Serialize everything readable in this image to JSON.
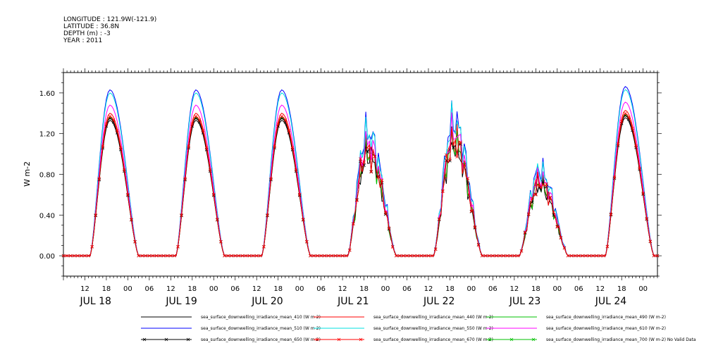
{
  "header": {
    "longitude": "LONGITUDE : 121.9W(-121.9)",
    "latitude": "LATITUDE : 36.8N",
    "depth": "DEPTH (m) : -3",
    "year": "YEAR : 2011"
  },
  "chart_data": {
    "type": "line",
    "ylabel": "W m-2",
    "ylim": [
      -0.2,
      1.8
    ],
    "yticks": [
      0.0,
      0.4,
      0.8,
      1.2,
      1.6
    ],
    "ytick_labels": [
      "0.00",
      "0.40",
      "0.80",
      "1.20",
      "1.60"
    ],
    "x_start_hour": 6,
    "x_end_hour": 172,
    "xtick_hours": [
      12,
      18,
      24,
      30,
      36,
      42,
      48,
      54,
      60,
      66,
      72,
      78,
      84,
      90,
      96,
      102,
      108,
      114,
      120,
      126,
      132,
      138,
      144,
      150,
      156,
      162,
      168
    ],
    "xtick_labels": [
      "12",
      "18",
      "00",
      "06",
      "12",
      "18",
      "00",
      "06",
      "12",
      "18",
      "00",
      "06",
      "12",
      "18",
      "00",
      "06",
      "12",
      "18",
      "00",
      "06",
      "12",
      "18",
      "00",
      "06",
      "12",
      "18",
      "00"
    ],
    "day_labels": [
      {
        "hour": 15,
        "label": "JUL 18"
      },
      {
        "hour": 39,
        "label": "JUL 19"
      },
      {
        "hour": 63,
        "label": "JUL 20"
      },
      {
        "hour": 87,
        "label": "JUL 21"
      },
      {
        "hour": 111,
        "label": "JUL 22"
      },
      {
        "hour": 135,
        "label": "JUL 23"
      },
      {
        "hour": 159,
        "label": "JUL 24"
      }
    ],
    "daily_profile": {
      "day_start_hours": [
        0,
        24,
        48,
        72,
        96,
        120,
        144
      ],
      "peak_factors": [
        1.0,
        1.0,
        1.0,
        0.75,
        0.82,
        0.52,
        1.02
      ],
      "sunrise_hour": 13.5,
      "sunset_hour": 27.0,
      "peak_hour": 19.0,
      "description_note": ""
    },
    "series": [
      {
        "name": "sea_surface_downwelling_irradiance_mean_410 (W m-2)",
        "color": "#000000",
        "marker": "",
        "peak": 1.33
      },
      {
        "name": "sea_surface_downwelling_irradiance_mean_440 (W m-2)",
        "color": "#ff0000",
        "marker": "",
        "peak": 1.4
      },
      {
        "name": "sea_surface_downwelling_irradiance_mean_490 (W m-2)",
        "color": "#00c000",
        "marker": "",
        "peak": 1.36
      },
      {
        "name": "sea_surface_downwelling_irradiance_mean_510 (W m-2)",
        "color": "#0000ff",
        "marker": "",
        "peak": 1.63
      },
      {
        "name": "sea_surface_downwelling_irradiance_mean_550 (W m-2)",
        "color": "#00e0e0",
        "marker": "",
        "peak": 1.6
      },
      {
        "name": "sea_surface_downwelling_irradiance_mean_610 (W m-2)",
        "color": "#ff00ff",
        "marker": "",
        "peak": 1.48
      },
      {
        "name": "sea_surface_downwelling_irradiance_mean_650 (W m-2)",
        "color": "#000000",
        "marker": "x",
        "peak": 1.35
      },
      {
        "name": "sea_surface_downwelling_irradiance_mean_670 (W m-2)",
        "color": "#ff0000",
        "marker": "x",
        "peak": 1.37
      },
      {
        "name": "sea_surface_downwelling_irradiance_mean_700 (W m-2) No Valid Data",
        "color": "#00c000",
        "marker": "x",
        "peak": 0
      }
    ]
  }
}
